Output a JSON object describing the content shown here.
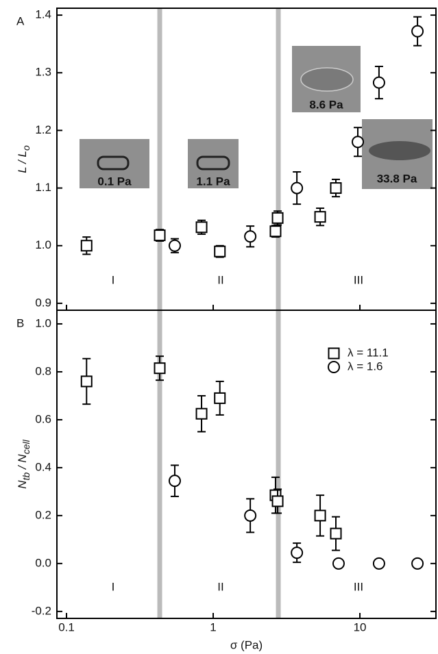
{
  "chart_data": [
    {
      "type": "scatter",
      "panel_label": "A",
      "ylabel": [
        "L / L",
        "o"
      ],
      "xlim": [
        0.086,
        33
      ],
      "xscale": "log",
      "ylim": [
        0.888,
        1.412
      ],
      "yticks": [
        0.9,
        {
          "value": 1.0,
          "label": "1.0"
        },
        1.1,
        1.2,
        1.3,
        1.4
      ],
      "vlines": [
        0.432,
        2.78
      ],
      "vline_color": "#bbbbbb",
      "regions": [
        "I",
        "II",
        "III"
      ],
      "annotations": [
        "0.1 Pa",
        "1.1 Pa",
        "8.6 Pa",
        "33.8 Pa"
      ],
      "series": [
        {
          "marker": "square",
          "color": "#000000",
          "x": [
            0.137,
            0.432,
            0.833,
            1.11,
            2.66,
            2.75,
            5.36,
            6.86
          ],
          "values": [
            1.0,
            1.018,
            1.032,
            0.99,
            1.025,
            1.048,
            1.05,
            1.1
          ],
          "errors": [
            0.015,
            0.01,
            0.012,
            0.01,
            0.01,
            0.012,
            0.015,
            0.015
          ]
        },
        {
          "marker": "circle",
          "color": "#000000",
          "x": [
            0.547,
            1.79,
            3.72,
            9.68,
            13.5,
            24.7
          ],
          "values": [
            1.0,
            1.016,
            1.1,
            1.18,
            1.283,
            1.372
          ],
          "errors": [
            0.012,
            0.018,
            0.028,
            0.025,
            0.028,
            0.025
          ]
        }
      ]
    },
    {
      "type": "scatter",
      "panel_label": "B",
      "ylabel": [
        "N",
        "tb",
        " / N",
        "cell"
      ],
      "xlabel": "σ (Pa)",
      "xlim": [
        0.086,
        33
      ],
      "xscale": "log",
      "ylim": [
        -0.229,
        1.057
      ],
      "xticks": [
        0.1,
        1,
        10
      ],
      "yticks": [
        -0.2,
        {
          "value": 0.0,
          "label": "0.0"
        },
        0.2,
        0.4,
        0.6,
        0.8,
        {
          "value": 1.0,
          "label": "1.0"
        }
      ],
      "vlines": [
        0.432,
        2.78
      ],
      "vline_color": "#bbbbbb",
      "regions": [
        "I",
        "II",
        "III"
      ],
      "legend": "upper right",
      "series": [
        {
          "name": "λ = 11.1",
          "marker": "square",
          "color": "#000000",
          "x": [
            0.137,
            0.432,
            0.833,
            1.11,
            2.66,
            2.75,
            5.36,
            6.86
          ],
          "values": [
            0.76,
            0.815,
            0.625,
            0.69,
            0.285,
            0.26,
            0.2,
            0.125
          ],
          "errors": [
            0.095,
            0.05,
            0.075,
            0.07,
            0.075,
            0.05,
            0.085,
            0.07
          ]
        },
        {
          "name": "λ = 1.6",
          "marker": "circle",
          "color": "#000000",
          "x": [
            0.547,
            1.79,
            3.72,
            7.16,
            13.5,
            24.7
          ],
          "values": [
            0.345,
            0.2,
            0.045,
            0.0,
            0.0,
            0.0
          ],
          "errors": [
            0.065,
            0.07,
            0.04,
            0,
            0,
            0
          ]
        }
      ]
    }
  ]
}
